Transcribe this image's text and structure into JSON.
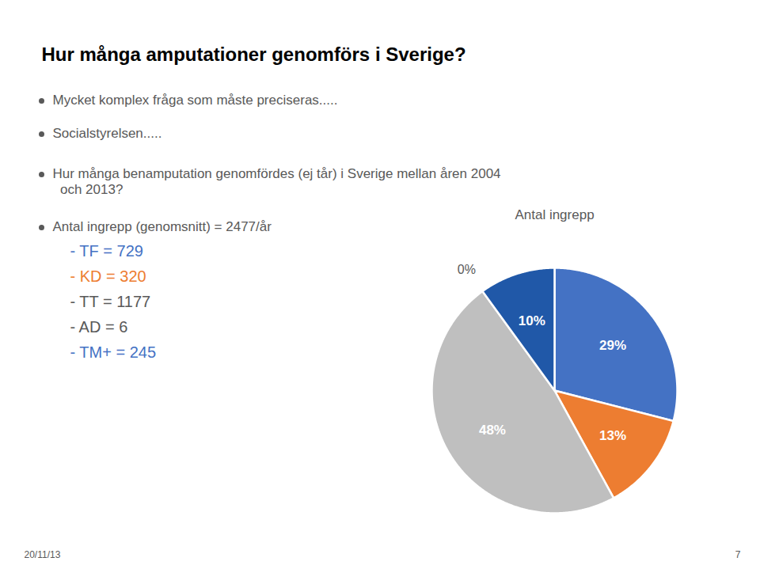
{
  "chart_data": {
    "type": "pie",
    "title": "Hur många amputationer genomförs i Sverige?",
    "subtitle": "Antal ingrepp",
    "values": [
      29,
      13,
      48,
      0,
      10
    ],
    "value_labels": [
      "29%",
      "13%",
      "48%",
      "0%",
      "10%"
    ],
    "colors": [
      "#4472C4",
      "#ED7D31",
      "#BFBFBF",
      "#E8E8E8",
      "#2058A8"
    ],
    "data_labels": true,
    "annotations": [
      {
        "text": "Mycket komplex fråga som måste preciseras.....",
        "color": "#595959"
      },
      {
        "text": "Socialstyrelsen.....",
        "color": "#595959"
      },
      {
        "text": "Hur många benamputation genomfördes (ej tår) i Sverige mellan åren 2004",
        "color": "#595959"
      },
      {
        "text": "  och 2013?",
        "color": "#595959"
      },
      {
        "text": "Antal ingrepp (genomsnitt) = 2477/år",
        "color": "#595959"
      },
      {
        "text": "- TF = 729",
        "color": "#4472C4"
      },
      {
        "text": "- KD = 320",
        "color": "#ED7D31"
      },
      {
        "text": "- TT = 1177",
        "color": "#595959"
      },
      {
        "text": "- AD = 6",
        "color": "#595959"
      },
      {
        "text": "- TM+ = 245",
        "color": "#4472C4"
      },
      {
        "text": "20/11/13",
        "color": "#595959"
      },
      {
        "text": "7",
        "color": "#595959"
      }
    ]
  }
}
